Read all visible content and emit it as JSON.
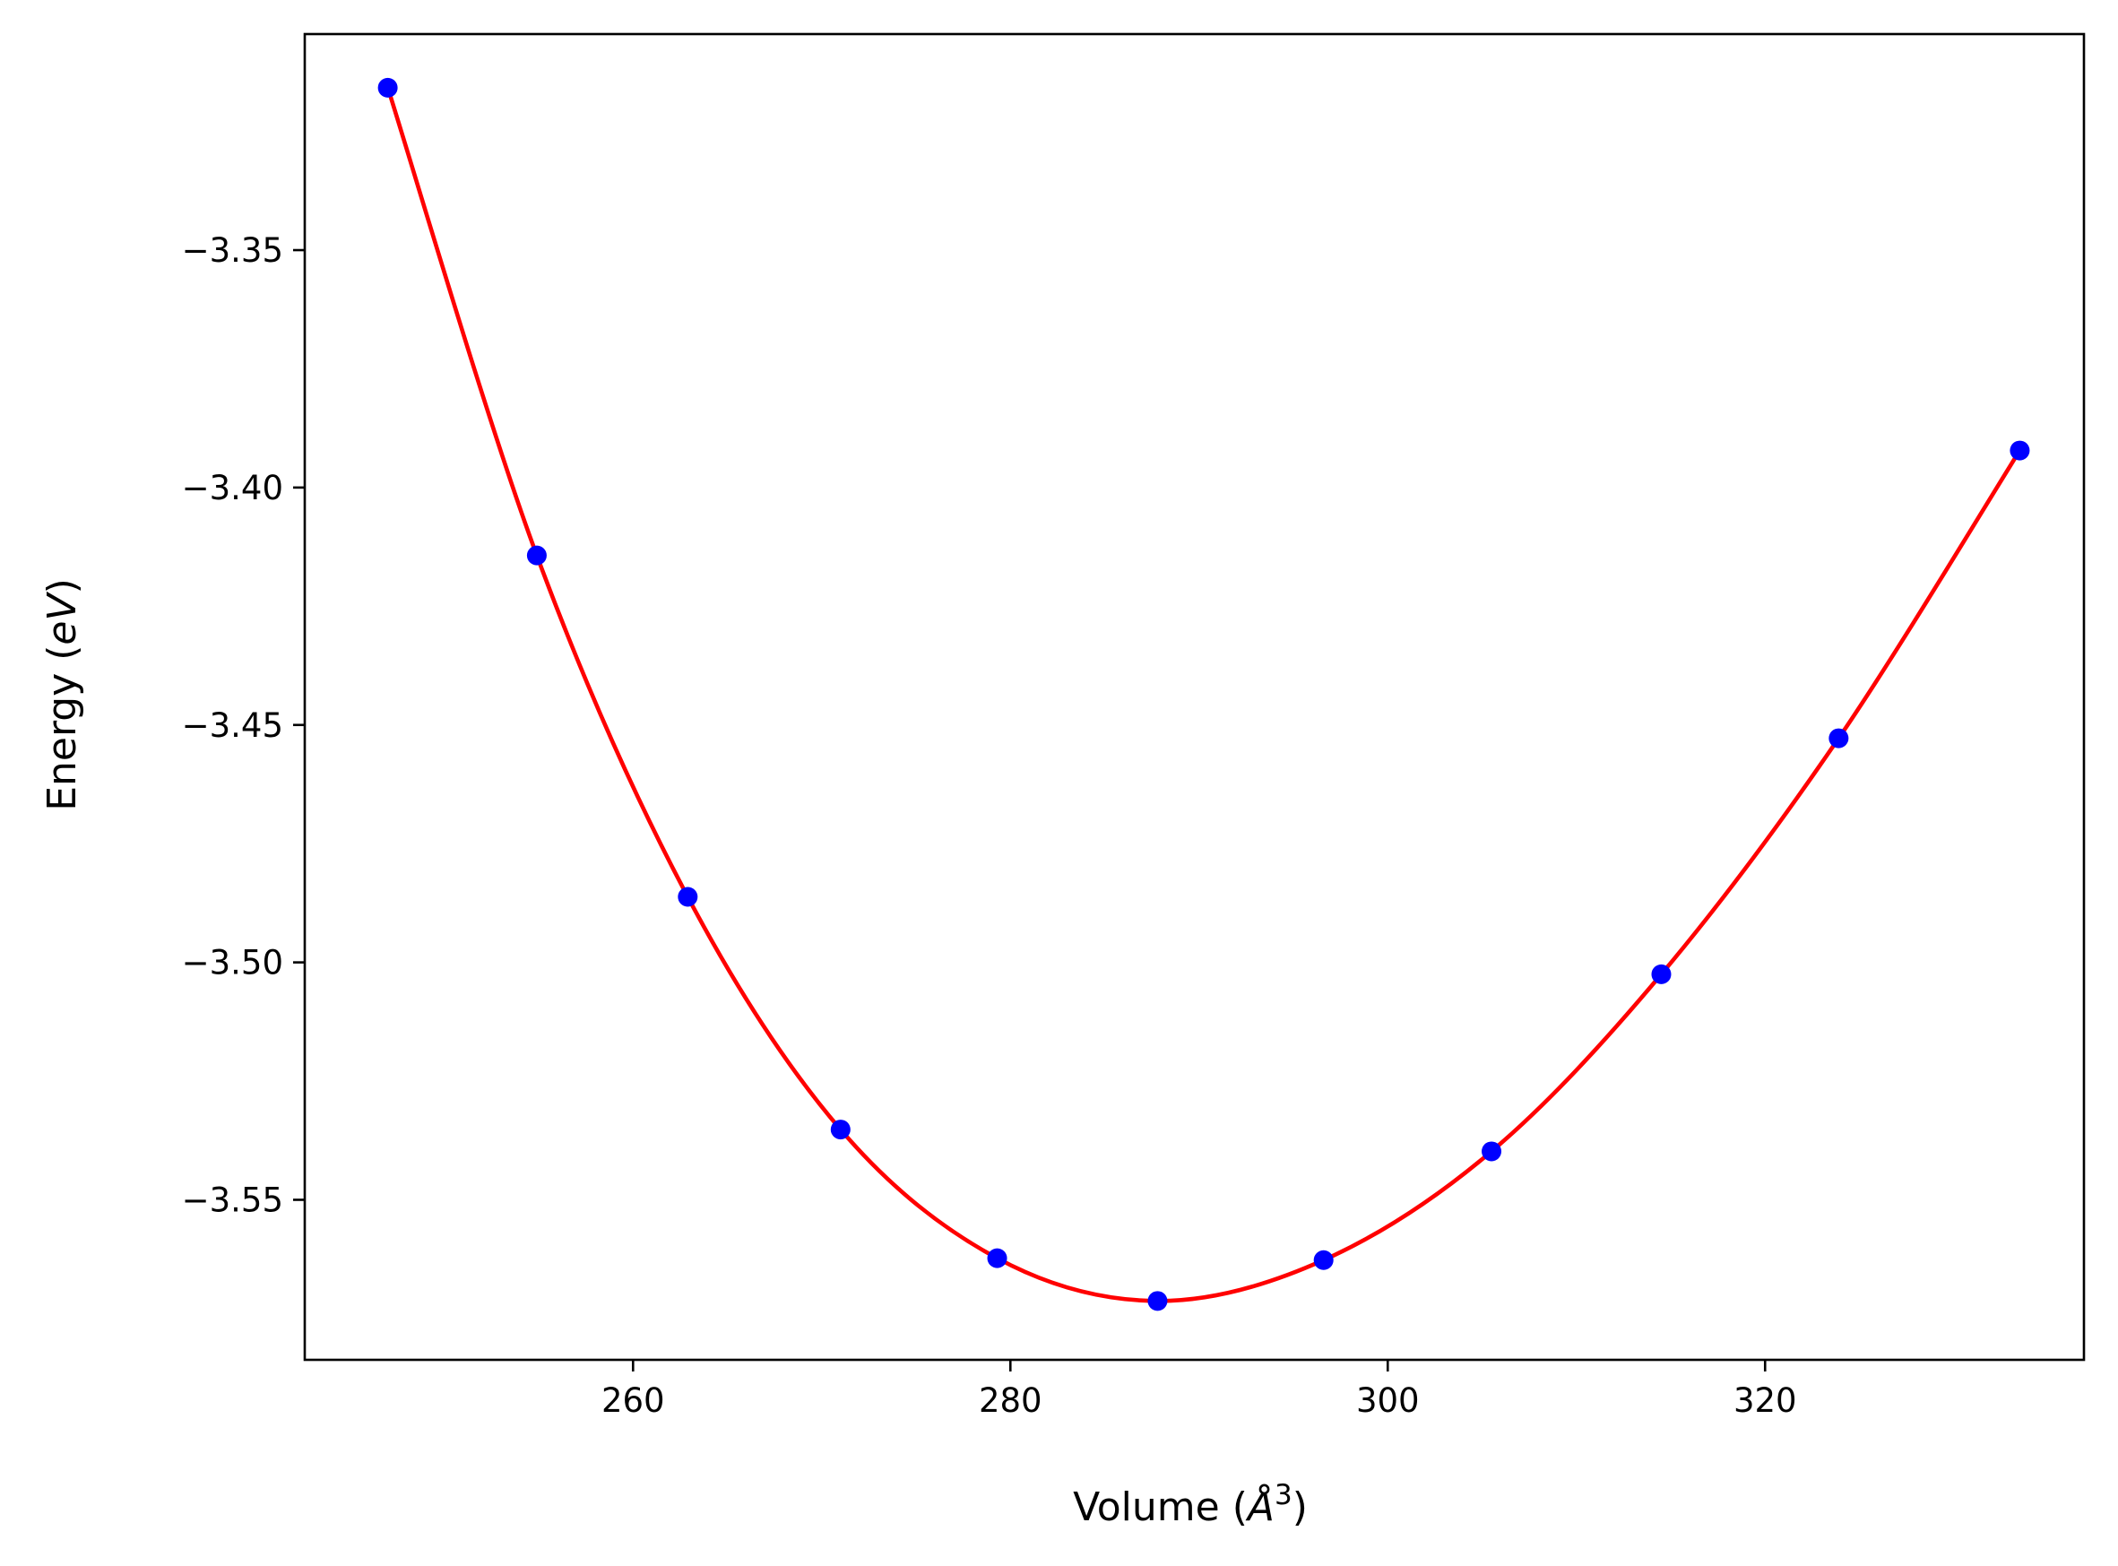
{
  "chart_data": {
    "type": "scatter",
    "title": "",
    "xlabel": "Volume (Å³)",
    "xlabel_parts": {
      "pre": "Volume (",
      "symbol": "Å",
      "sup": "3",
      "post": ")"
    },
    "ylabel": "Energy (eV)",
    "ylabel_parts": {
      "pre": "Energy (",
      "italic": "eV",
      "post": ")"
    },
    "xlim": [
      242.6,
      336.9
    ],
    "ylim": [
      -3.5837,
      -3.3045
    ],
    "x_ticks": [
      260,
      280,
      300,
      320
    ],
    "x_tick_labels": [
      "260",
      "280",
      "300",
      "320"
    ],
    "y_ticks": [
      -3.35,
      -3.4,
      -3.45,
      -3.5,
      -3.55
    ],
    "y_tick_labels": [
      "−3.35",
      "−3.40",
      "−3.45",
      "−3.50",
      "−3.55"
    ],
    "grid": false,
    "legend": "none",
    "series": [
      {
        "kind": "points",
        "color": "#0000ff",
        "x": [
          247.0,
          254.9,
          262.9,
          271.0,
          279.3,
          287.8,
          296.6,
          305.5,
          314.5,
          323.9,
          333.5
        ],
        "y": [
          -3.3158,
          -3.4143,
          -3.4862,
          -3.5352,
          -3.5623,
          -3.5713,
          -3.5627,
          -3.5398,
          -3.5025,
          -3.4528,
          -3.3922
        ]
      },
      {
        "kind": "fit-curve",
        "color": "#ff0000",
        "x": [
          247.0,
          254.9,
          262.9,
          271.0,
          279.3,
          287.8,
          296.6,
          305.5,
          314.5,
          323.9,
          333.5
        ],
        "y": [
          -3.3158,
          -3.4143,
          -3.4862,
          -3.5352,
          -3.5623,
          -3.5713,
          -3.5627,
          -3.5398,
          -3.5025,
          -3.4528,
          -3.3922
        ]
      }
    ]
  }
}
